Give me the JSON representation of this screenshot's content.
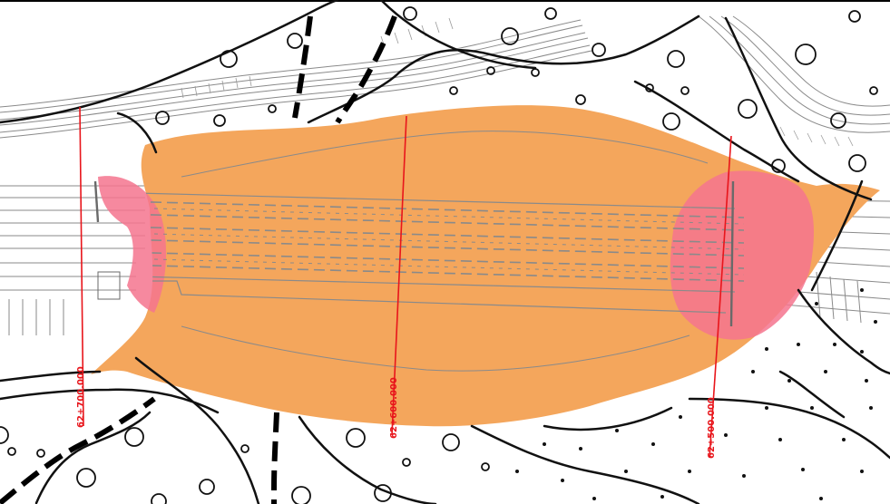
{
  "map": {
    "colors": {
      "corridor_fill": "#F4A65C",
      "zone_fill": "#F4748E",
      "station_line": "#E8151B",
      "contour_stroke": "#111111",
      "road_stroke": "#8A8A8A"
    },
    "stations": [
      {
        "label": "62+700.000"
      },
      {
        "label": "62+600.000"
      },
      {
        "label": "62+500.000"
      }
    ]
  }
}
